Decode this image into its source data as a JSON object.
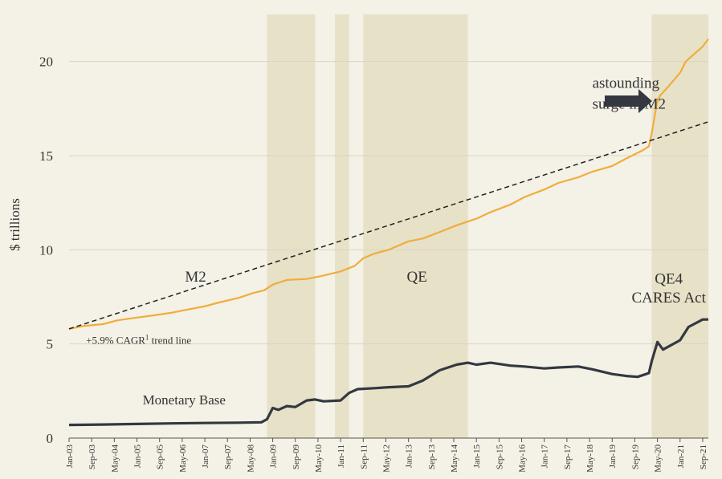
{
  "chart_data": {
    "type": "line",
    "title": "",
    "ylabel": "$ trillions",
    "xlabel": "",
    "ylim": [
      0,
      22.5
    ],
    "yticks": [
      0,
      5,
      10,
      15,
      20
    ],
    "xlim": [
      "2003-01",
      "2021-11"
    ],
    "xticks": [
      "Jan-03",
      "Sep-03",
      "May-04",
      "Jan-05",
      "Sep-05",
      "May-06",
      "Jan-07",
      "Sep-07",
      "May-08",
      "Jan-09",
      "Sep-09",
      "May-10",
      "Jan-11",
      "Sep-11",
      "May-12",
      "Jan-13",
      "Sep-13",
      "May-14",
      "Jan-15",
      "Sep-15",
      "May-16",
      "Jan-17",
      "Sep-17",
      "May-18",
      "Jan-19",
      "Sep-19",
      "May-20",
      "Jan-21",
      "Sep-21"
    ],
    "grid": "horizontal",
    "colors": {
      "background": "#f4f1e6",
      "shade": "#e7e1c8",
      "m2": "#f0ad3c",
      "base": "#333841",
      "trend": "#222222",
      "grid": "#d9d5c6"
    },
    "shaded_periods": [
      {
        "start": "2008-11",
        "end": "2010-04"
      },
      {
        "start": "2010-11",
        "end": "2011-04"
      },
      {
        "start": "2011-09",
        "end": "2014-10"
      },
      {
        "start": "2020-03",
        "end": "2021-11"
      }
    ],
    "series": [
      {
        "name": "M2",
        "points": [
          [
            "2003-01",
            5.8
          ],
          [
            "2003-06",
            5.95
          ],
          [
            "2004-01",
            6.05
          ],
          [
            "2004-06",
            6.25
          ],
          [
            "2005-01",
            6.4
          ],
          [
            "2005-06",
            6.5
          ],
          [
            "2006-01",
            6.65
          ],
          [
            "2006-06",
            6.8
          ],
          [
            "2007-01",
            7.0
          ],
          [
            "2007-06",
            7.2
          ],
          [
            "2008-01",
            7.45
          ],
          [
            "2008-06",
            7.7
          ],
          [
            "2008-10",
            7.85
          ],
          [
            "2009-01",
            8.15
          ],
          [
            "2009-06",
            8.4
          ],
          [
            "2010-01",
            8.45
          ],
          [
            "2010-06",
            8.6
          ],
          [
            "2011-01",
            8.85
          ],
          [
            "2011-06",
            9.15
          ],
          [
            "2011-09",
            9.55
          ],
          [
            "2012-01",
            9.8
          ],
          [
            "2012-06",
            10.0
          ],
          [
            "2013-01",
            10.45
          ],
          [
            "2013-06",
            10.6
          ],
          [
            "2014-01",
            11.0
          ],
          [
            "2014-06",
            11.3
          ],
          [
            "2015-01",
            11.65
          ],
          [
            "2015-06",
            12.0
          ],
          [
            "2016-01",
            12.4
          ],
          [
            "2016-06",
            12.8
          ],
          [
            "2017-01",
            13.2
          ],
          [
            "2017-06",
            13.55
          ],
          [
            "2018-01",
            13.85
          ],
          [
            "2018-06",
            14.15
          ],
          [
            "2019-01",
            14.45
          ],
          [
            "2019-06",
            14.85
          ],
          [
            "2019-12",
            15.3
          ],
          [
            "2020-02",
            15.5
          ],
          [
            "2020-03",
            16.2
          ],
          [
            "2020-04",
            17.1
          ],
          [
            "2020-05",
            17.9
          ],
          [
            "2020-06",
            18.2
          ],
          [
            "2020-09",
            18.7
          ],
          [
            "2021-01",
            19.4
          ],
          [
            "2021-03",
            20.0
          ],
          [
            "2021-06",
            20.4
          ],
          [
            "2021-09",
            20.8
          ],
          [
            "2021-11",
            21.2
          ]
        ]
      },
      {
        "name": "Monetary Base",
        "points": [
          [
            "2003-01",
            0.7
          ],
          [
            "2004-01",
            0.72
          ],
          [
            "2005-01",
            0.75
          ],
          [
            "2006-01",
            0.78
          ],
          [
            "2007-01",
            0.8
          ],
          [
            "2008-01",
            0.82
          ],
          [
            "2008-09",
            0.84
          ],
          [
            "2008-11",
            1.0
          ],
          [
            "2009-01",
            1.6
          ],
          [
            "2009-03",
            1.5
          ],
          [
            "2009-06",
            1.7
          ],
          [
            "2009-09",
            1.65
          ],
          [
            "2010-01",
            2.0
          ],
          [
            "2010-04",
            2.05
          ],
          [
            "2010-07",
            1.95
          ],
          [
            "2011-01",
            2.0
          ],
          [
            "2011-04",
            2.4
          ],
          [
            "2011-07",
            2.6
          ],
          [
            "2012-01",
            2.65
          ],
          [
            "2012-06",
            2.7
          ],
          [
            "2013-01",
            2.75
          ],
          [
            "2013-06",
            3.05
          ],
          [
            "2013-12",
            3.6
          ],
          [
            "2014-06",
            3.9
          ],
          [
            "2014-10",
            4.0
          ],
          [
            "2015-01",
            3.9
          ],
          [
            "2015-06",
            4.0
          ],
          [
            "2016-01",
            3.85
          ],
          [
            "2016-06",
            3.8
          ],
          [
            "2017-01",
            3.7
          ],
          [
            "2017-06",
            3.75
          ],
          [
            "2018-01",
            3.8
          ],
          [
            "2018-06",
            3.65
          ],
          [
            "2019-01",
            3.4
          ],
          [
            "2019-06",
            3.3
          ],
          [
            "2019-10",
            3.25
          ],
          [
            "2020-01",
            3.4
          ],
          [
            "2020-02",
            3.45
          ],
          [
            "2020-03",
            4.1
          ],
          [
            "2020-05",
            5.1
          ],
          [
            "2020-07",
            4.7
          ],
          [
            "2021-01",
            5.2
          ],
          [
            "2021-04",
            5.9
          ],
          [
            "2021-09",
            6.3
          ],
          [
            "2021-11",
            6.3
          ]
        ]
      },
      {
        "name": "+5.9% CAGR trend line",
        "style": "dashed",
        "points": [
          [
            "2003-01",
            5.8
          ],
          [
            "2021-11",
            16.8
          ]
        ]
      }
    ],
    "annotations": [
      {
        "text": "M2",
        "x": "2006-06",
        "y": 8.3,
        "size": "large",
        "color_key": "m2"
      },
      {
        "text": "+5.9% CAGR",
        "sup": "1",
        "text_after": " trend line",
        "x": "2003-07",
        "y": 5.0,
        "size": "small"
      },
      {
        "text": "Monetary Base",
        "x": "2005-03",
        "y": 1.8,
        "size": "medium"
      },
      {
        "text": "QE",
        "x": "2013-04",
        "y": 8.3,
        "size": "large"
      },
      {
        "text": "QE4",
        "x": "2020-09",
        "y": 8.2,
        "size": "large"
      },
      {
        "text": "CARES Act",
        "x": "2020-09",
        "y": 7.2,
        "size": "large"
      },
      {
        "text": "astounding",
        "x": "2018-06",
        "y": 18.6,
        "size": "large"
      },
      {
        "text": "surge in M2",
        "x": "2018-06",
        "y": 17.5,
        "size": "large"
      }
    ]
  }
}
